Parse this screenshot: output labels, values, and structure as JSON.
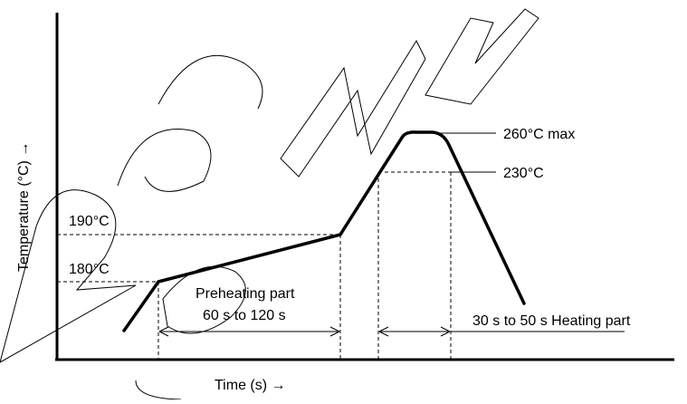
{
  "diagram": {
    "x_axis_label": "Time (s) →",
    "y_axis_label": "Temperature (°C) →",
    "labels": {
      "peak": "260°C max",
      "t230": "230°C",
      "t190": "190°C",
      "t180": "180°C",
      "preheat_line1": "Preheating part",
      "preheat_line2": "60 s to 120 s",
      "heating": "30 s to 50 s Heating part"
    },
    "watermark": [
      "Rec",
      "New",
      "for"
    ]
  }
}
